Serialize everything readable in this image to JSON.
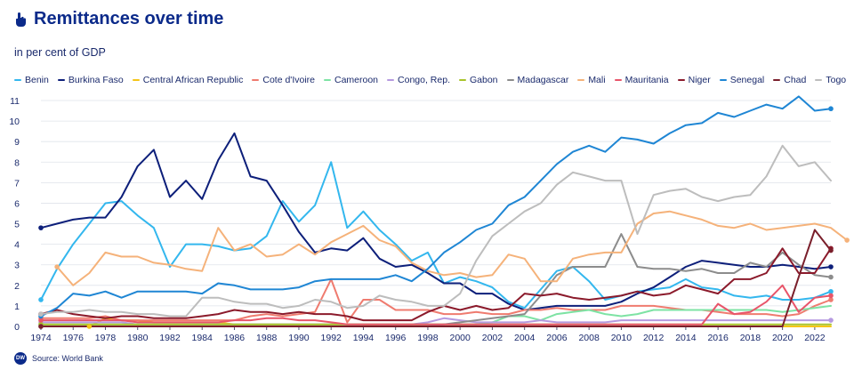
{
  "header": {
    "title": "Remittances over time",
    "subtitle": "in per cent of GDP",
    "title_icon": "hand-pointer-icon"
  },
  "footer": {
    "logo": "DW",
    "source": "Source: World Bank"
  },
  "colors": {
    "Benin": "#33b7ee",
    "Burkina Faso": "#0d1f7a",
    "Central African Republic": "#f5c518",
    "Cote d'Ivoire": "#ef7b6f",
    "Cameroon": "#7ee3a4",
    "Congo, Rep.": "#b69ae0",
    "Gabon": "#a8c42a",
    "Madagascar": "#8c8c8c",
    "Mali": "#f5b27a",
    "Mauritania": "#e8556a",
    "Niger": "#8b1a2b",
    "Senegal": "#1f86d4",
    "Chad": "#7a1f2b",
    "Togo": "#bdbdbd"
  },
  "chart_data": {
    "type": "line",
    "title": "Remittances over time",
    "ylabel": "in per cent of GDP",
    "xlim": [
      1974,
      2023
    ],
    "ylim": [
      0,
      11
    ],
    "yticks": [
      0,
      1,
      2,
      3,
      4,
      5,
      6,
      7,
      8,
      9,
      10,
      11
    ],
    "xticks": [
      1974,
      1976,
      1978,
      1980,
      1982,
      1984,
      1986,
      1988,
      1990,
      1992,
      1994,
      1996,
      1998,
      2000,
      2002,
      2004,
      2006,
      2008,
      2010,
      2012,
      2014,
      2016,
      2018,
      2020,
      2022
    ],
    "series": [
      {
        "name": "Benin",
        "x0": 1974,
        "end_marker": true,
        "values": [
          1.3,
          2.8,
          4.0,
          5.0,
          6.0,
          6.1,
          5.4,
          4.8,
          2.9,
          4.0,
          4.0,
          3.9,
          3.7,
          3.8,
          4.4,
          6.1,
          5.1,
          5.9,
          8.0,
          4.8,
          5.6,
          4.7,
          4.0,
          3.2,
          3.6,
          2.1,
          2.4,
          2.2,
          1.9,
          1.2,
          0.9,
          1.8,
          2.7,
          2.9,
          2.2,
          1.3,
          1.5,
          1.7,
          1.8,
          1.9,
          2.3,
          1.9,
          1.8,
          1.5,
          1.4,
          1.5,
          1.3,
          1.3,
          1.4,
          1.7
        ]
      },
      {
        "name": "Burkina Faso",
        "x0": 1974,
        "end_marker": true,
        "values": [
          4.8,
          5.0,
          5.2,
          5.3,
          5.3,
          6.3,
          7.8,
          8.6,
          6.3,
          7.1,
          6.2,
          8.1,
          9.4,
          7.3,
          7.1,
          5.9,
          4.6,
          3.6,
          3.8,
          3.7,
          4.3,
          3.3,
          2.9,
          3.0,
          2.6,
          2.1,
          2.1,
          1.6,
          1.6,
          1.1,
          0.8,
          0.9,
          1.0,
          1.0,
          1.0,
          1.0,
          1.2,
          1.6,
          1.9,
          2.4,
          2.9,
          3.2,
          3.1,
          3.0,
          2.9,
          2.9,
          3.0,
          2.9,
          2.8,
          2.9
        ]
      },
      {
        "name": "Central African Republic",
        "x0": 1977,
        "end_marker": false,
        "values": [
          0.0,
          0.4,
          0.3,
          0.3,
          0.2,
          0.2,
          0.2,
          0.2,
          0.2,
          0.1,
          0.1,
          0.1,
          0.1,
          0.1,
          0.1,
          0.1,
          0.1,
          0.1,
          0.0,
          0.0,
          0.0,
          0.0,
          0.0,
          0.0,
          0.0,
          0.0,
          0.0,
          0.0,
          0.0,
          0.0,
          0.0,
          0.0,
          0.0,
          0.0,
          0.0,
          0.0,
          0.0,
          0.0,
          0.0,
          0.0,
          0.0,
          0.0,
          0.0,
          0.0,
          0.0,
          0.0,
          0.0
        ]
      },
      {
        "name": "Cote d'Ivoire",
        "x0": 1974,
        "end_marker": true,
        "values": [
          0.4,
          0.4,
          0.4,
          0.4,
          0.5,
          0.3,
          0.3,
          0.3,
          0.3,
          0.3,
          0.3,
          0.3,
          0.3,
          0.5,
          0.6,
          0.5,
          0.6,
          0.7,
          2.3,
          0.2,
          1.3,
          1.3,
          0.8,
          0.8,
          0.8,
          0.6,
          0.6,
          0.7,
          0.6,
          0.6,
          0.8,
          0.8,
          0.9,
          0.8,
          0.8,
          0.8,
          1.0,
          1.0,
          1.0,
          0.9,
          0.8,
          0.8,
          0.7,
          0.6,
          0.6,
          0.6,
          0.5,
          0.6,
          1.0,
          1.3
        ]
      },
      {
        "name": "Cameroon",
        "x0": 1974,
        "end_marker": false,
        "values": [
          0.1,
          0.1,
          0.1,
          0.1,
          0.1,
          0.1,
          0.1,
          0.1,
          0.1,
          0.1,
          0.1,
          0.1,
          0.1,
          0.1,
          0.1,
          0.1,
          0.1,
          0.1,
          0.1,
          0.1,
          0.1,
          0.1,
          0.1,
          0.1,
          0.1,
          0.1,
          0.1,
          0.1,
          0.2,
          0.5,
          0.5,
          0.3,
          0.6,
          0.7,
          0.8,
          0.6,
          0.5,
          0.6,
          0.8,
          0.8,
          0.8,
          0.8,
          0.8,
          0.8,
          0.8,
          0.8,
          0.7,
          0.8,
          0.9,
          1.0
        ]
      },
      {
        "name": "Congo, Rep.",
        "x0": 1974,
        "end_marker": true,
        "values": [
          0.2,
          0.2,
          0.2,
          0.2,
          0.2,
          0.2,
          0.1,
          0.1,
          0.1,
          0.1,
          0.1,
          0.1,
          0.1,
          0.1,
          0.1,
          0.1,
          0.1,
          0.1,
          0.1,
          0.1,
          0.1,
          0.1,
          0.1,
          0.1,
          0.2,
          0.4,
          0.3,
          0.2,
          0.2,
          0.2,
          0.2,
          0.3,
          0.2,
          0.2,
          0.2,
          0.2,
          0.3,
          0.3,
          0.3,
          0.3,
          0.3,
          0.3,
          0.3,
          0.3,
          0.3,
          0.3,
          0.3,
          0.3,
          0.3,
          0.3
        ]
      },
      {
        "name": "Gabon",
        "x0": 1974,
        "end_marker": false,
        "values": [
          0.1,
          0.1,
          0.1,
          0.1,
          0.1,
          0.1,
          0.1,
          0.1,
          0.1,
          0.1,
          0.1,
          0.1,
          0.1,
          0.1,
          0.1,
          0.1,
          0.1,
          0.1,
          0.1,
          0.1,
          0.1,
          0.1,
          0.1,
          0.1,
          0.1,
          0.1,
          0.1,
          0.1,
          0.1,
          0.1,
          0.1,
          0.1,
          0.1,
          0.1,
          0.1,
          0.1,
          0.1,
          0.1,
          0.1,
          0.1,
          0.1,
          0.1,
          0.1,
          0.1,
          0.1,
          0.1,
          0.1,
          0.1,
          0.1,
          0.1
        ]
      },
      {
        "name": "Madagascar",
        "x0": 1974,
        "end_marker": true,
        "values": [
          0.0,
          0.0,
          0.0,
          0.0,
          0.0,
          0.0,
          0.0,
          0.0,
          0.0,
          0.0,
          0.0,
          0.0,
          0.0,
          0.0,
          0.0,
          0.0,
          0.0,
          0.0,
          0.0,
          0.0,
          0.0,
          0.0,
          0.0,
          0.0,
          0.0,
          0.1,
          0.2,
          0.3,
          0.4,
          0.5,
          0.6,
          1.5,
          2.5,
          2.9,
          2.9,
          2.9,
          4.5,
          2.9,
          2.8,
          2.8,
          2.7,
          2.8,
          2.6,
          2.6,
          3.1,
          2.9,
          3.6,
          3.0,
          2.5,
          2.4
        ]
      },
      {
        "name": "Mali",
        "x0": 1975,
        "end_marker": true,
        "values": [
          2.9,
          2.0,
          2.6,
          3.6,
          3.4,
          3.4,
          3.1,
          3.0,
          2.8,
          2.7,
          4.8,
          3.7,
          4.0,
          3.4,
          3.5,
          4.0,
          3.5,
          4.1,
          4.5,
          4.9,
          4.2,
          3.9,
          3.1,
          2.7,
          2.5,
          2.6,
          2.4,
          2.5,
          3.5,
          3.3,
          2.2,
          2.2,
          3.3,
          3.5,
          3.6,
          3.6,
          5.0,
          5.5,
          5.6,
          5.4,
          5.2,
          4.9,
          4.8,
          5.0,
          4.7,
          4.8,
          4.9,
          5.0,
          4.8,
          4.2
        ]
      },
      {
        "name": "Mauritania",
        "x0": 1974,
        "end_marker": true,
        "values": [
          0.3,
          0.3,
          0.3,
          0.3,
          0.3,
          0.3,
          0.2,
          0.2,
          0.2,
          0.2,
          0.2,
          0.2,
          0.3,
          0.3,
          0.4,
          0.4,
          0.3,
          0.3,
          0.2,
          0.1,
          0.1,
          0.1,
          0.1,
          0.1,
          0.1,
          0.1,
          0.1,
          0.1,
          0.1,
          0.1,
          0.1,
          0.1,
          0.1,
          0.1,
          0.1,
          0.1,
          0.1,
          0.1,
          0.1,
          0.1,
          0.1,
          0.1,
          1.1,
          0.6,
          0.7,
          1.2,
          2.0,
          0.7,
          1.4,
          1.5
        ]
      },
      {
        "name": "Niger",
        "x0": 1974,
        "end_marker": true,
        "values": [
          0.6,
          0.8,
          0.6,
          0.5,
          0.4,
          0.5,
          0.5,
          0.4,
          0.4,
          0.4,
          0.5,
          0.6,
          0.8,
          0.7,
          0.7,
          0.6,
          0.7,
          0.6,
          0.6,
          0.5,
          0.3,
          0.3,
          0.3,
          0.3,
          0.7,
          1.0,
          0.8,
          1.0,
          0.8,
          0.9,
          1.6,
          1.5,
          1.6,
          1.4,
          1.3,
          1.4,
          1.5,
          1.7,
          1.5,
          1.6,
          2.0,
          1.8,
          1.6,
          2.3,
          2.3,
          2.6,
          3.8,
          2.6,
          2.6,
          3.8
        ]
      },
      {
        "name": "Senegal",
        "x0": 1974,
        "end_marker": true,
        "values": [
          0.5,
          0.9,
          1.6,
          1.5,
          1.7,
          1.4,
          1.7,
          1.7,
          1.7,
          1.7,
          1.6,
          2.1,
          2.0,
          1.8,
          1.8,
          1.8,
          1.9,
          2.2,
          2.3,
          2.3,
          2.3,
          2.3,
          2.5,
          2.2,
          2.8,
          3.6,
          4.1,
          4.7,
          5.0,
          5.9,
          6.3,
          7.1,
          7.9,
          8.5,
          8.8,
          8.5,
          9.2,
          9.1,
          8.9,
          9.4,
          9.8,
          9.9,
          10.4,
          10.2,
          10.5,
          10.8,
          10.6,
          11.2,
          10.5,
          10.6
        ]
      },
      {
        "name": "Chad",
        "x0": 1974,
        "end_marker": true,
        "values": [
          0.0,
          0.0,
          0.0,
          0.0,
          0.0,
          0.0,
          0.0,
          0.0,
          0.0,
          0.0,
          0.0,
          0.0,
          0.0,
          0.0,
          0.0,
          0.0,
          0.0,
          0.0,
          0.0,
          0.0,
          0.0,
          0.0,
          0.0,
          0.0,
          0.0,
          0.0,
          0.0,
          0.0,
          0.0,
          0.0,
          0.0,
          0.0,
          0.0,
          0.0,
          0.0,
          0.0,
          0.0,
          0.0,
          0.0,
          0.0,
          0.0,
          0.0,
          0.0,
          0.0,
          0.0,
          0.0,
          0.0,
          2.4,
          4.7,
          3.7
        ]
      },
      {
        "name": "Togo",
        "x0": 1974,
        "end_marker": false,
        "values": [
          0.6,
          0.7,
          0.7,
          0.8,
          0.7,
          0.7,
          0.6,
          0.6,
          0.5,
          0.5,
          1.4,
          1.4,
          1.2,
          1.1,
          1.1,
          0.9,
          1.0,
          1.3,
          1.2,
          0.9,
          1.0,
          1.5,
          1.3,
          1.2,
          1.0,
          1.0,
          1.6,
          3.2,
          4.4,
          5.0,
          5.6,
          6.0,
          6.9,
          7.5,
          7.3,
          7.1,
          7.1,
          4.5,
          6.4,
          6.6,
          6.7,
          6.3,
          6.1,
          6.3,
          6.4,
          7.3,
          8.8,
          7.8,
          8.0,
          7.1
        ]
      }
    ]
  }
}
